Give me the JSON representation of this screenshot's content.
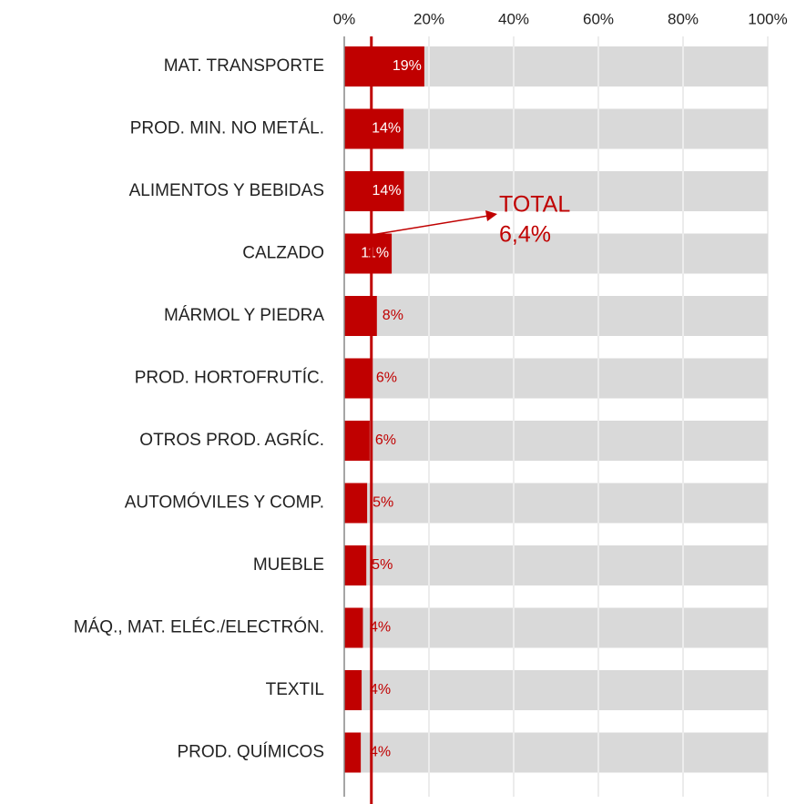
{
  "chart_data": {
    "type": "bar",
    "orientation": "horizontal",
    "categories": [
      "MAT. TRANSPORTE",
      "PROD. MIN. NO METÁL.",
      "ALIMENTOS Y BEBIDAS",
      "CALZADO",
      "MÁRMOL Y PIEDRA",
      "PROD. HORTOFRUTÍC.",
      "OTROS PROD. AGRÍC.",
      "AUTOMÓVILES Y COMP.",
      "MUEBLE",
      "MÁQ., MAT. ELÉC./ELECTRÓN.",
      "TEXTIL",
      "PROD. QUÍMICOS"
    ],
    "values": [
      18.9,
      14,
      14.1,
      11.2,
      7.7,
      6.2,
      6,
      5.4,
      5.2,
      4.4,
      4.1,
      3.9
    ],
    "value_labels": [
      "19%",
      "14%",
      "14%",
      "11%",
      "8%",
      "6%",
      "6%",
      "5%",
      "5%",
      "4%",
      "4%",
      "4%"
    ],
    "color": "#c00000",
    "background_color": "#d9d9d9",
    "xlim": [
      0,
      100
    ],
    "xticks": [
      {
        "value": 0,
        "label": "0%"
      },
      {
        "value": 20,
        "label": "20%"
      },
      {
        "value": 40,
        "label": "40%"
      },
      {
        "value": 60,
        "label": "60%"
      },
      {
        "value": 80,
        "label": "80%"
      },
      {
        "value": 100,
        "label": "100%"
      }
    ],
    "reference_line": {
      "value": 6.4,
      "label": [
        "TOTAL",
        "6,4%"
      ]
    },
    "grid": true
  }
}
